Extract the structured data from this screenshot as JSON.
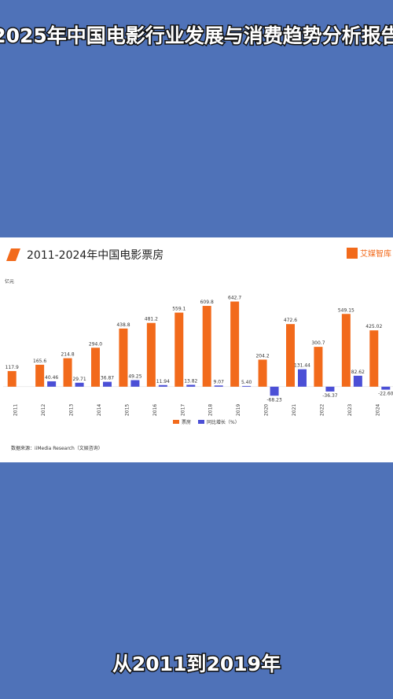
{
  "title": "2025年中国电影行业发展与消费趋势分析报告",
  "caption": "从2011到2019年",
  "chart_data": {
    "type": "bar",
    "title": "2011-2024年中国电影票房",
    "logo": "艾媒智库",
    "y_label": "亿元",
    "source": "数据来源：iiMedia Research（文娱咨询）",
    "categories": [
      "2011",
      "2012",
      "2013",
      "2014",
      "2015",
      "2016",
      "2017",
      "2018",
      "2019",
      "2020",
      "2021",
      "2022",
      "2023",
      "2024"
    ],
    "ylim": [
      -120,
      800
    ],
    "series": [
      {
        "name": "票房",
        "color": "#f26a1b",
        "values": [
          117.9,
          165.6,
          214.8,
          294.0,
          438.8,
          481.2,
          559.1,
          609.8,
          642.7,
          204.2,
          472.6,
          300.7,
          549.15,
          425.02
        ],
        "value_labels": [
          "117.9",
          "165.6",
          "214.8",
          "294.0",
          "438.8",
          "481.2",
          "559.1",
          "609.8",
          "642.7",
          "204.2",
          "472.6",
          "300.7",
          "549.15",
          "425.02"
        ]
      },
      {
        "name": "同比增长（%）",
        "color": "#4b4fd6",
        "values": [
          null,
          40.46,
          29.71,
          36.87,
          49.25,
          11.94,
          13.82,
          9.07,
          5.4,
          -68.23,
          131.44,
          -36.37,
          82.62,
          -22.6
        ],
        "value_labels": [
          null,
          "40.46",
          "29.71",
          "36.87",
          "49.25",
          "11.94",
          "13.82",
          "9.07",
          "5.40",
          "-68.23",
          "131.44",
          "-36.37",
          "82.62",
          "-22.60"
        ]
      }
    ]
  }
}
